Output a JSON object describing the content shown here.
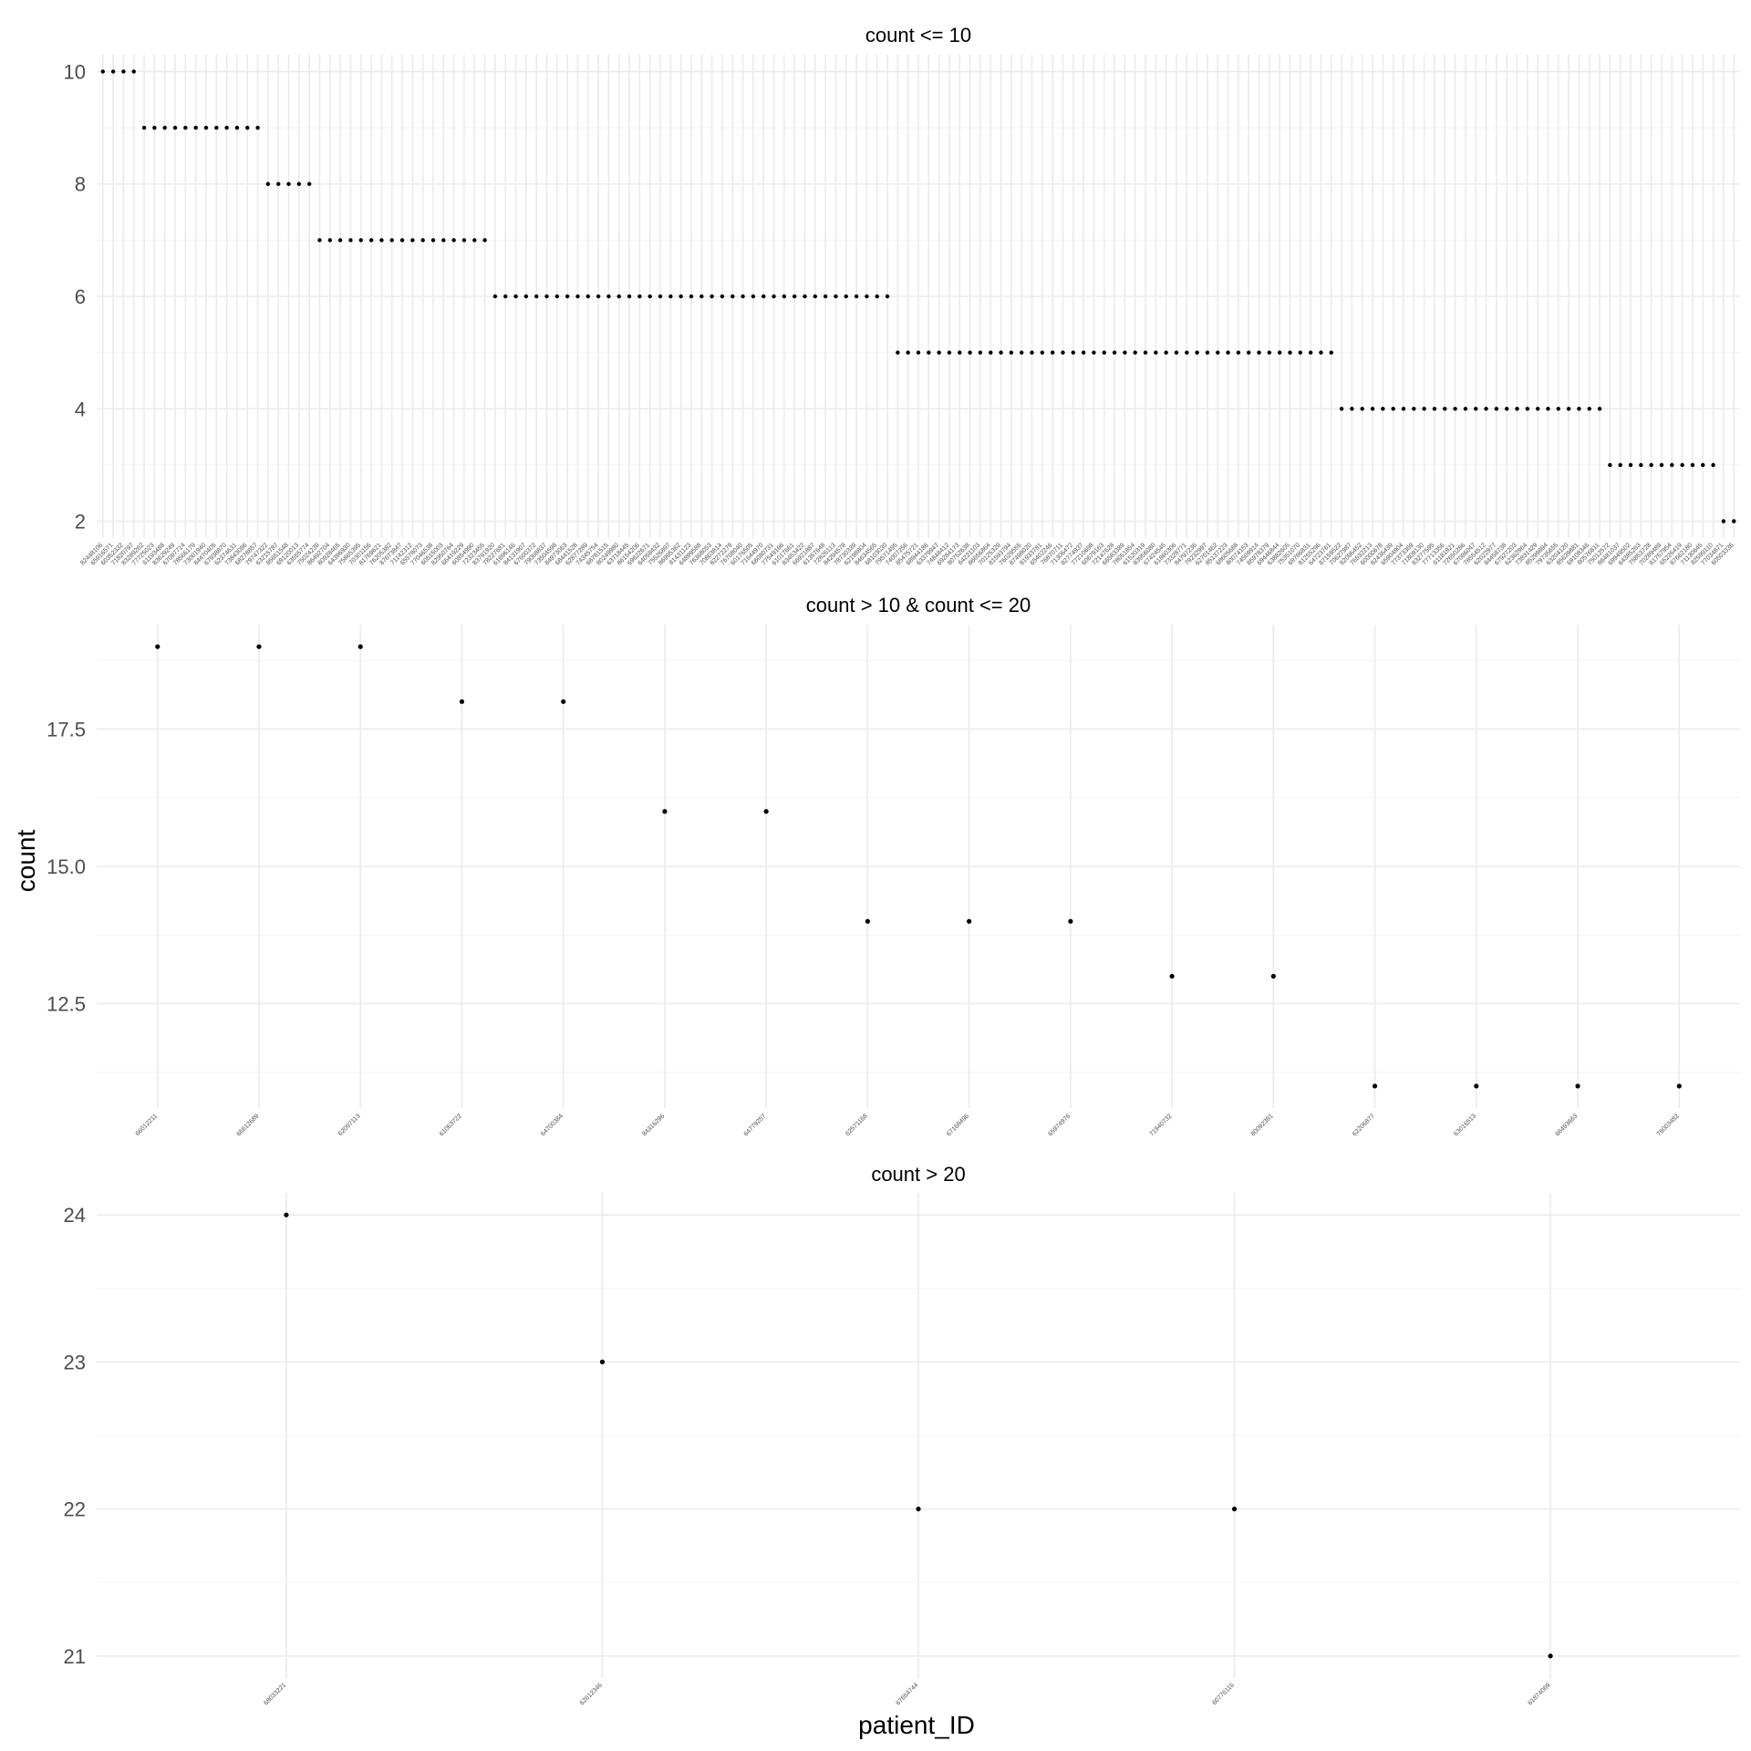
{
  "chart_data": {
    "type": "scatter",
    "xlabel": "patient_ID",
    "ylabel": "count",
    "grid": true,
    "legend": "none",
    "point_color": "#000000",
    "panels": [
      {
        "title": "count <= 10",
        "yticks": [
          2,
          4,
          6,
          8,
          10
        ],
        "ylim": [
          1.7,
          10.3
        ],
        "groups": [
          {
            "y": 10,
            "n": 4
          },
          {
            "y": 9,
            "n": 12
          },
          {
            "y": 8,
            "n": 5
          },
          {
            "y": 7,
            "n": 17
          },
          {
            "y": 6,
            "n": 39
          },
          {
            "y": 5,
            "n": 43
          },
          {
            "y": 4,
            "n": 26
          },
          {
            "y": 3,
            "n": 11
          },
          {
            "y": 2,
            "n": 2
          }
        ]
      },
      {
        "title": "count > 10 & count <= 20",
        "yticks": [
          12.5,
          15.0,
          17.5
        ],
        "ylim": [
          10.6,
          19.4
        ],
        "categories": [
          "66012211",
          "66612689",
          "62097113",
          "61063722",
          "64700384",
          "84316296",
          "64779257",
          "62571168",
          "67168496",
          "65974976",
          "71940732",
          "80092391",
          "62206877",
          "63016513",
          "66493663",
          "76003482"
        ],
        "values": [
          19,
          19,
          19,
          18,
          18,
          16,
          16,
          14,
          14,
          14,
          13,
          13,
          11,
          11,
          11,
          11
        ]
      },
      {
        "title": "count > 20",
        "yticks": [
          21,
          22,
          23,
          24
        ],
        "ylim": [
          20.85,
          24.15
        ],
        "categories": [
          "68033221",
          "62612346",
          "67654744",
          "60776116",
          "61874069"
        ],
        "values": [
          24,
          23,
          22,
          22,
          21
        ]
      }
    ]
  }
}
